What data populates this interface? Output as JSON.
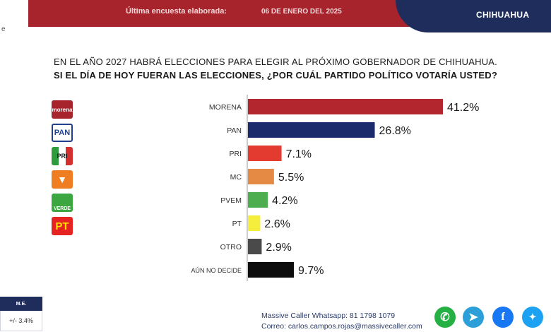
{
  "header": {
    "survey_label": "Última encuesta elaborada:",
    "survey_date": "06 DE ENERO DEL 2025",
    "state": "CHIHUAHUA"
  },
  "question": {
    "line1": "EN EL AÑO 2027 HABRÁ ELECCIONES PARA ELEGIR AL PRÓXIMO GOBERNADOR DE CHIHUAHUA.",
    "line2": "SI EL DÍA DE HOY FUERAN LAS ELECCIONES, ¿POR CUÁL PARTIDO POLÍTICO VOTARÍA USTED?"
  },
  "logos": [
    {
      "icon": "morena-logo",
      "text": "morena",
      "color": "#a8242c"
    },
    {
      "icon": "pan-logo",
      "text": "PAN",
      "color": "#1f3f8f"
    },
    {
      "icon": "pri-logo",
      "text": "PRI",
      "color": "#d32f2f"
    },
    {
      "icon": "mc-logo",
      "text": "",
      "color": "#ef7d22"
    },
    {
      "icon": "pvem-logo",
      "text": "VERDE",
      "color": "#3ca640"
    },
    {
      "icon": "pt-logo",
      "text": "PT",
      "color": "#e52421"
    }
  ],
  "chart_data": {
    "type": "bar",
    "orientation": "horizontal",
    "categories": [
      "MORENA",
      "PAN",
      "PRI",
      "MC",
      "PVEM",
      "PT",
      "OTRO",
      "AÚN NO DECIDE"
    ],
    "values": [
      41.2,
      26.8,
      7.1,
      5.5,
      4.2,
      2.6,
      2.9,
      9.7
    ],
    "value_labels": [
      "41.2%",
      "26.8%",
      "7.1%",
      "5.5%",
      "4.2%",
      "2.6%",
      "2.9%",
      "9.7%"
    ],
    "colors": [
      "#b3262e",
      "#1c2b6b",
      "#e33b30",
      "#e58a45",
      "#4cae4f",
      "#f5ee3c",
      "#4a4a4a",
      "#0d0d0d"
    ],
    "xlim": [
      0,
      41.2
    ],
    "grid": false,
    "legend": "none"
  },
  "footer": {
    "me_label": "M.E.",
    "me_value": "+/- 3.4%",
    "whatsapp": "Massive Caller Whatsapp: 81 1798 1079",
    "email": "Correo: carlos.campos.rojas@massivecaller.com"
  },
  "social": [
    {
      "icon": "whatsapp-icon",
      "color": "#25b044"
    },
    {
      "icon": "telegram-icon",
      "color": "#2c9fd8"
    },
    {
      "icon": "facebook-icon",
      "color": "#1877f2"
    },
    {
      "icon": "twitter-icon",
      "color": "#1da1f2"
    }
  ]
}
